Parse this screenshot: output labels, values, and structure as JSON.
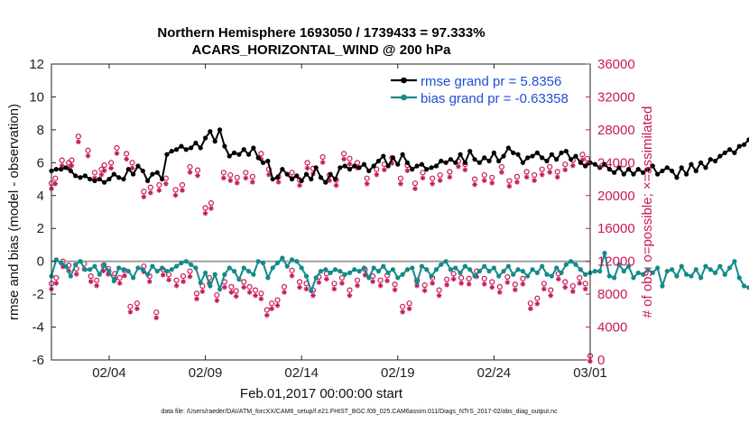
{
  "chart_data": {
    "type": "line",
    "title": "Northern Hemisphere 1693050 / 1739433 = 97.333%",
    "subtitle": "ACARS_HORIZONTAL_WIND @ 200 hPa",
    "xlabel": "Feb.01,2017 00:00:00 start",
    "ylabel": "rmse and bias (model - observation)",
    "y2label": "# of obs: o=possible; ×=assimilated",
    "ylim": [
      -6,
      12
    ],
    "y2lim": [
      0,
      36000
    ],
    "xlim": [
      1,
      29
    ],
    "xticks": [
      4,
      9,
      14,
      19,
      24,
      29
    ],
    "xtick_labels": [
      "02/04",
      "02/09",
      "02/14",
      "02/19",
      "02/24",
      "03/01"
    ],
    "yticks": [
      -6,
      -4,
      -2,
      0,
      2,
      4,
      6,
      8,
      10,
      12
    ],
    "ytick_labels": [
      "-6",
      "-4",
      "-2",
      "0",
      "2",
      "4",
      "6",
      "8",
      "10",
      "12"
    ],
    "y2ticks": [
      0,
      4000,
      8000,
      12000,
      16000,
      20000,
      24000,
      28000,
      32000,
      36000
    ],
    "y2tick_labels": [
      "0",
      "4000",
      "8000",
      "12000",
      "16000",
      "20000",
      "24000",
      "28000",
      "32000",
      "36000"
    ],
    "legend": [
      "rmse grand pr = 5.8356",
      "bias grand pr = -0.63358"
    ],
    "legend_position": "top-right",
    "footer": "data file: /Users/raeder/DAI/ATM_forcXX/CAM6_setup/f.e21.FHIST_BGC.f09_025.CAM6assim.011/Diags_NTrS_2017-02/obs_diag_output.nc",
    "rmse_series": {
      "name": "rmse",
      "x_start": 1.0,
      "x_step": 0.25,
      "values": [
        5.5,
        5.6,
        5.6,
        5.7,
        5.5,
        5.2,
        5.1,
        5.2,
        5.0,
        4.9,
        5.0,
        4.8,
        5.0,
        5.3,
        5.1,
        5.0,
        5.6,
        5.3,
        5.8,
        5.5,
        4.9,
        5.3,
        5.4,
        5.0,
        6.5,
        6.7,
        6.8,
        7.0,
        6.8,
        6.9,
        7.2,
        6.9,
        7.5,
        7.9,
        7.3,
        8.0,
        7.0,
        6.4,
        6.6,
        6.5,
        6.8,
        6.5,
        6.9,
        6.3,
        6.0,
        6.1,
        5.0,
        5.1,
        5.6,
        5.3,
        5.0,
        5.2,
        4.9,
        5.3,
        5.0,
        5.7,
        5.1,
        4.8,
        5.3,
        5.0,
        5.7,
        5.8,
        5.6,
        5.8,
        5.7,
        5.9,
        5.5,
        5.8,
        6.1,
        6.4,
        5.8,
        6.3,
        5.9,
        6.5,
        6.0,
        5.6,
        5.8,
        5.9,
        5.6,
        5.7,
        5.8,
        6.1,
        6.0,
        6.2,
        6.0,
        6.5,
        6.0,
        6.7,
        6.2,
        6.0,
        6.3,
        6.1,
        6.6,
        6.1,
        6.4,
        6.9,
        6.6,
        6.5,
        6.0,
        6.3,
        6.4,
        6.6,
        6.3,
        6.1,
        6.5,
        6.2,
        6.6,
        6.7,
        6.2,
        6.4,
        6.0,
        5.8,
        6.0,
        5.9,
        5.7,
        5.9,
        5.6,
        5.4,
        5.7,
        5.3,
        5.6,
        5.3,
        5.6,
        5.4,
        5.6,
        5.8,
        5.3,
        5.5,
        5.7,
        5.5,
        5.1,
        5.7,
        5.3,
        5.9,
        5.5,
        6.0,
        5.7,
        6.2,
        6.1,
        6.4,
        6.6,
        6.8,
        6.6,
        7.0,
        7.1,
        7.4
      ],
      "color": "#000000"
    },
    "bias_series": {
      "name": "bias",
      "x_start": 1.0,
      "x_step": 0.25,
      "values": [
        -0.9,
        0.1,
        -0.1,
        -0.3,
        -0.9,
        -0.2,
        0.0,
        -0.5,
        -0.5,
        -0.3,
        -0.8,
        -0.2,
        -0.6,
        -1.2,
        -0.4,
        -0.5,
        -0.6,
        -1.0,
        -0.4,
        -0.5,
        -0.8,
        -0.3,
        -0.6,
        -0.4,
        -0.6,
        -0.5,
        -0.3,
        -0.1,
        0.0,
        -0.2,
        -0.4,
        -1.3,
        -0.7,
        -1.5,
        -0.8,
        -1.7,
        -0.8,
        -0.4,
        -0.6,
        -1.1,
        -0.4,
        -0.6,
        -0.8,
        0.0,
        -0.1,
        -1.0,
        -0.4,
        -0.1,
        0.2,
        -0.3,
        0.1,
        0.0,
        -0.4,
        -0.9,
        -1.8,
        -1.0,
        -0.6,
        -0.5,
        -0.7,
        -0.5,
        -0.6,
        -0.8,
        -0.7,
        -0.5,
        -0.6,
        -0.4,
        -1.0,
        -0.4,
        -0.6,
        -0.3,
        -0.7,
        -0.5,
        -1.0,
        -0.8,
        -0.5,
        -0.4,
        -1.3,
        -0.3,
        -0.5,
        -0.9,
        -0.5,
        -0.2,
        0.0,
        -0.5,
        -0.4,
        -0.7,
        -0.3,
        -0.5,
        -0.9,
        -0.6,
        -0.3,
        -0.6,
        -0.4,
        -0.9,
        -0.6,
        -0.3,
        -0.8,
        -0.5,
        -0.6,
        -0.9,
        -0.5,
        -0.7,
        -0.3,
        -0.8,
        -0.9,
        -0.4,
        -0.7,
        -0.2,
        0.0,
        -0.2,
        -0.5,
        -0.8,
        -0.7,
        -0.6,
        -0.6,
        0.5,
        -0.9,
        -1.0,
        -0.2,
        -0.6,
        -0.3,
        -1.0,
        -0.7,
        -0.8,
        -0.5,
        -0.7,
        -0.4,
        -1.5,
        -0.6,
        -0.5,
        -0.9,
        -0.3,
        -0.8,
        -0.9,
        -0.5,
        -1.0,
        -0.3,
        -0.5,
        -0.7,
        -0.3,
        -0.8,
        -0.4,
        0.0,
        -1.0,
        -1.5,
        -1.6
      ],
      "color": "#138a8a"
    },
    "obs_upper": {
      "name": "obs upper cluster",
      "points": [
        [
          1.0,
          21000
        ],
        [
          1.2,
          21600
        ],
        [
          1.55,
          23800
        ],
        [
          1.9,
          23500
        ],
        [
          2.05,
          23800
        ],
        [
          2.4,
          26700
        ],
        [
          2.9,
          25000
        ],
        [
          3.25,
          22300
        ],
        [
          3.6,
          22700
        ],
        [
          3.75,
          23200
        ],
        [
          4.1,
          23500
        ],
        [
          4.4,
          25300
        ],
        [
          4.9,
          24600
        ],
        [
          5.2,
          23500
        ],
        [
          5.8,
          20000
        ],
        [
          6.15,
          20500
        ],
        [
          6.6,
          20800
        ],
        [
          6.95,
          21600
        ],
        [
          7.45,
          20200
        ],
        [
          7.8,
          20800
        ],
        [
          8.2,
          23000
        ],
        [
          8.6,
          22600
        ],
        [
          9.0,
          18000
        ],
        [
          9.3,
          18600
        ],
        [
          9.95,
          22300
        ],
        [
          10.3,
          22000
        ],
        [
          10.65,
          21700
        ],
        [
          11.1,
          22300
        ],
        [
          11.45,
          21800
        ],
        [
          11.9,
          24600
        ],
        [
          12.3,
          22700
        ],
        [
          12.8,
          21800
        ],
        [
          13.5,
          22300
        ],
        [
          13.9,
          21400
        ],
        [
          14.3,
          23500
        ],
        [
          14.6,
          22800
        ],
        [
          15.1,
          24200
        ],
        [
          15.45,
          22000
        ],
        [
          15.8,
          21400
        ],
        [
          16.2,
          24600
        ],
        [
          16.5,
          24000
        ],
        [
          16.9,
          23500
        ],
        [
          17.4,
          21600
        ],
        [
          17.9,
          22700
        ],
        [
          18.3,
          23300
        ],
        [
          18.7,
          24100
        ],
        [
          19.15,
          21600
        ],
        [
          19.5,
          23200
        ],
        [
          19.9,
          21000
        ],
        [
          20.3,
          22300
        ],
        [
          20.8,
          21600
        ],
        [
          21.2,
          22000
        ],
        [
          21.7,
          22400
        ],
        [
          22.15,
          23700
        ],
        [
          22.5,
          23300
        ],
        [
          23.0,
          21500
        ],
        [
          23.5,
          22000
        ],
        [
          23.9,
          21700
        ],
        [
          24.4,
          23000
        ],
        [
          24.8,
          21300
        ],
        [
          25.2,
          21800
        ],
        [
          25.7,
          22400
        ],
        [
          26.1,
          22000
        ],
        [
          26.5,
          22700
        ],
        [
          26.9,
          23000
        ],
        [
          27.3,
          22400
        ],
        [
          27.7,
          23300
        ],
        [
          28.1,
          23800
        ],
        [
          28.6,
          24500
        ],
        [
          28.85,
          24000
        ]
      ],
      "color": "#c8195a"
    },
    "obs_lower": {
      "name": "obs lower cluster",
      "points": [
        [
          1.0,
          8800
        ],
        [
          1.25,
          9500
        ],
        [
          1.6,
          11500
        ],
        [
          1.9,
          11000
        ],
        [
          2.3,
          10600
        ],
        [
          2.7,
          11200
        ],
        [
          3.05,
          9700
        ],
        [
          3.35,
          9200
        ],
        [
          3.7,
          11000
        ],
        [
          3.95,
          10600
        ],
        [
          4.3,
          10000
        ],
        [
          4.55,
          9500
        ],
        [
          4.8,
          10400
        ],
        [
          5.1,
          6000
        ],
        [
          5.45,
          6400
        ],
        [
          5.8,
          10900
        ],
        [
          6.1,
          9700
        ],
        [
          6.45,
          5300
        ],
        [
          6.8,
          10500
        ],
        [
          7.1,
          9900
        ],
        [
          7.5,
          9200
        ],
        [
          7.85,
          9700
        ],
        [
          8.2,
          10300
        ],
        [
          8.55,
          7600
        ],
        [
          8.85,
          8500
        ],
        [
          9.2,
          9500
        ],
        [
          9.6,
          7400
        ],
        [
          10.0,
          9000
        ],
        [
          10.35,
          8400
        ],
        [
          10.6,
          7900
        ],
        [
          11.0,
          9000
        ],
        [
          11.3,
          8400
        ],
        [
          11.6,
          8000
        ],
        [
          11.9,
          7600
        ],
        [
          12.2,
          5600
        ],
        [
          12.45,
          6400
        ],
        [
          12.75,
          6800
        ],
        [
          13.1,
          8400
        ],
        [
          13.5,
          10400
        ],
        [
          13.9,
          9000
        ],
        [
          14.25,
          8800
        ],
        [
          14.6,
          8000
        ],
        [
          14.9,
          9600
        ],
        [
          15.3,
          10000
        ],
        [
          15.7,
          8800
        ],
        [
          16.1,
          9500
        ],
        [
          16.5,
          8000
        ],
        [
          16.9,
          9200
        ],
        [
          17.3,
          10500
        ],
        [
          17.7,
          9700
        ],
        [
          18.1,
          9200
        ],
        [
          18.45,
          9800
        ],
        [
          18.85,
          8700
        ],
        [
          19.25,
          6000
        ],
        [
          19.6,
          6400
        ],
        [
          20.0,
          9200
        ],
        [
          20.4,
          8600
        ],
        [
          20.8,
          9500
        ],
        [
          21.15,
          8000
        ],
        [
          21.55,
          9300
        ],
        [
          21.9,
          10000
        ],
        [
          22.3,
          9500
        ],
        [
          22.7,
          9400
        ],
        [
          23.1,
          10300
        ],
        [
          23.5,
          9400
        ],
        [
          23.9,
          9000
        ],
        [
          24.3,
          8400
        ],
        [
          24.7,
          9600
        ],
        [
          25.1,
          8700
        ],
        [
          25.5,
          9400
        ],
        [
          25.9,
          6400
        ],
        [
          26.25,
          7000
        ],
        [
          26.6,
          8800
        ],
        [
          26.95,
          8000
        ],
        [
          27.35,
          10000
        ],
        [
          27.7,
          9000
        ],
        [
          28.1,
          8500
        ],
        [
          28.45,
          9500
        ],
        [
          28.75,
          8800
        ],
        [
          29.0,
          0
        ]
      ],
      "color": "#c8195a"
    }
  }
}
